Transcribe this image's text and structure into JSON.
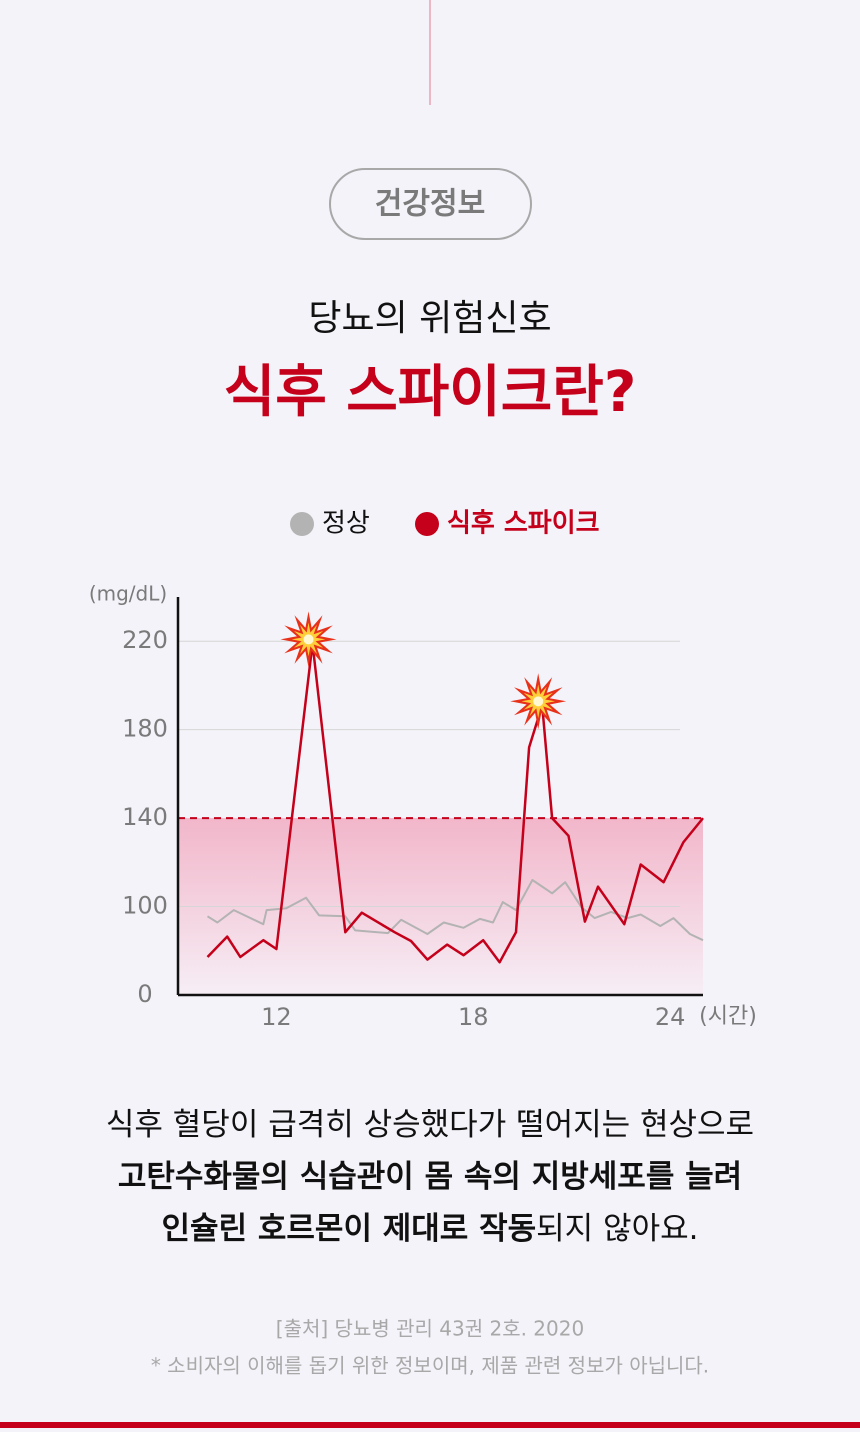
{
  "header": {
    "tag": "건강정보",
    "title": "당뇨의 위험신호",
    "headline": "식후 스파이크란?"
  },
  "chart_data": {
    "type": "line",
    "y_label": "(mg/dL)",
    "x_label": "(시간)",
    "xlim": [
      9,
      25
    ],
    "xticks": [
      12,
      18,
      24
    ],
    "ylim": [
      0,
      240
    ],
    "yticks": [
      0,
      100,
      140,
      180,
      220
    ],
    "grid": true,
    "threshold": 140,
    "series": [
      {
        "name": "정상",
        "color": "#b3b3b3",
        "x": [
          9.9,
          10.2,
          10.7,
          11.6,
          11.7,
          12.3,
          12.9,
          13.3,
          14.1,
          14.4,
          15.4,
          15.8,
          16.6,
          17.1,
          17.7,
          18.2,
          18.6,
          18.9,
          19.3,
          19.8,
          20.4,
          20.8,
          21.3,
          21.7,
          22.2,
          22.7,
          23.1,
          23.7,
          24.1,
          24.6,
          25.0
        ],
        "values": [
          89,
          82,
          96,
          80,
          96,
          98,
          104,
          90,
          89,
          73,
          70,
          85,
          69,
          82,
          76,
          86,
          82,
          102,
          96,
          112,
          106,
          111,
          99,
          87,
          94,
          87,
          91,
          78,
          87,
          69,
          62
        ]
      },
      {
        "name": "식후 스파이크",
        "color": "#c4001a",
        "x": [
          9.9,
          10.5,
          10.9,
          11.6,
          12.0,
          13.1,
          14.1,
          14.6,
          15.6,
          16.1,
          16.6,
          17.2,
          17.7,
          18.3,
          18.8,
          19.3,
          19.7,
          20.1,
          20.4,
          20.9,
          21.4,
          21.8,
          22.6,
          23.1,
          23.8,
          24.4,
          25.0
        ],
        "values": [
          43,
          66,
          43,
          62,
          52,
          219,
          71,
          93,
          71,
          61,
          40,
          57,
          45,
          62,
          37,
          71,
          172,
          191,
          140,
          132,
          83,
          109,
          80,
          119,
          111,
          129,
          140
        ]
      }
    ]
  },
  "body": {
    "lines": [
      [
        {
          "text": "식후 혈당이 급격히 상승했다가 떨어지는 현상으로",
          "bold": false
        }
      ],
      [
        {
          "text": "고탄수화물의 식습관이 몸 속의 지방세포를 늘려",
          "bold": true
        }
      ],
      [
        {
          "text": "인슐린 호르몬이 제대로 작동",
          "bold": true
        },
        {
          "text": "되지 않아요.",
          "bold": false
        }
      ]
    ]
  },
  "footer": {
    "source": "[출처] 당뇨병 관리 43권 2호. 2020",
    "note": "* 소비자의 이해를 돕기 위한 정보이며, 제품 관련 정보가 아닙니다."
  }
}
